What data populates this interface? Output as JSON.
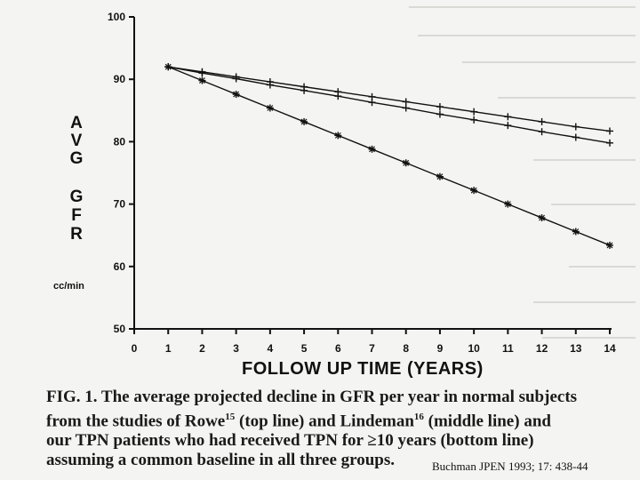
{
  "chart_data": {
    "type": "line",
    "ylabel_letters": [
      "A",
      "V",
      "G",
      "G",
      "F",
      "R"
    ],
    "ylabel_unit": "cc/min",
    "xlabel": "FOLLOW UP TIME (YEARS)",
    "xlim": [
      0,
      14
    ],
    "ylim": [
      50,
      100
    ],
    "xticks": [
      0,
      1,
      2,
      3,
      4,
      5,
      6,
      7,
      8,
      9,
      10,
      11,
      12,
      13,
      14
    ],
    "yticks": [
      50,
      60,
      70,
      80,
      90,
      100
    ],
    "x": [
      1,
      2,
      3,
      4,
      5,
      6,
      7,
      8,
      9,
      10,
      11,
      12,
      13,
      14
    ],
    "series": [
      {
        "values": [
          92.0,
          91.2,
          90.4,
          89.6,
          88.8,
          88.0,
          87.2,
          86.4,
          85.6,
          84.8,
          84.0,
          83.2,
          82.4,
          81.7
        ],
        "marker": "plus"
      },
      {
        "values": [
          92.0,
          91.0,
          90.1,
          89.1,
          88.2,
          87.3,
          86.3,
          85.4,
          84.4,
          83.5,
          82.6,
          81.6,
          80.7,
          79.8
        ],
        "marker": "plus"
      },
      {
        "values": [
          92.0,
          89.8,
          87.6,
          85.4,
          83.2,
          81.0,
          78.8,
          76.6,
          74.4,
          72.2,
          70.0,
          67.8,
          65.6,
          63.4
        ],
        "marker": "star"
      }
    ],
    "grid": false
  },
  "caption": {
    "line1": "FIG. 1.  The average projected decline in GFR per year in normal subjects",
    "line2_a": "from the studies of Rowe",
    "line2_ref1": "15",
    "line2_b": " (top line) and Lindeman",
    "line2_ref2": "16",
    "line2_c": " (middle line) and",
    "line3": "our TPN patients who had received TPN for ≥10 years (bottom line)",
    "line4": "assuming a common baseline in all three groups."
  },
  "citation": "Buchman JPEN 1993; 17: 438-44",
  "colors": {
    "ink": "#111111",
    "paper": "#f4f4f2"
  }
}
